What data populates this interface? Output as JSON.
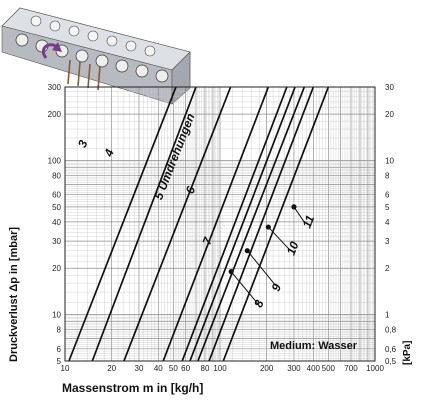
{
  "chart_data": {
    "type": "line",
    "x_scale": "log",
    "y_scale": "log",
    "xlim": [
      10,
      1000
    ],
    "ylim_mbar": [
      5,
      300
    ],
    "ylim_kpa": [
      0.5,
      30
    ],
    "grid": true,
    "xlabel": "Massenstrom m in [kg/h]",
    "ylabel_left": "Druckverlust  Δp in [mbar]",
    "ylabel_right": "[kPa]",
    "annotation": "Medium: Wasser",
    "x_ticks": [
      {
        "v": 10,
        "t": "10"
      },
      {
        "v": 20,
        "t": "20"
      },
      {
        "v": 30,
        "t": "30"
      },
      {
        "v": 40,
        "t": "40"
      },
      {
        "v": 50,
        "t": "50"
      },
      {
        "v": 60,
        "t": "60"
      },
      {
        "v": 80,
        "t": "80"
      },
      {
        "v": 100,
        "t": "100"
      },
      {
        "v": 200,
        "t": "200"
      },
      {
        "v": 300,
        "t": "300"
      },
      {
        "v": 400,
        "t": "400"
      },
      {
        "v": 500,
        "t": "500"
      },
      {
        "v": 700,
        "t": "700"
      },
      {
        "v": 1000,
        "t": "1000"
      }
    ],
    "y_ticks_left": [
      {
        "v": 5,
        "t": "5"
      },
      {
        "v": 6,
        "t": "6"
      },
      {
        "v": 8,
        "t": "8"
      },
      {
        "v": 10,
        "t": "10"
      },
      {
        "v": 20,
        "t": "20"
      },
      {
        "v": 30,
        "t": "30"
      },
      {
        "v": 40,
        "t": "40"
      },
      {
        "v": 50,
        "t": "50"
      },
      {
        "v": 60,
        "t": "60"
      },
      {
        "v": 80,
        "t": "80"
      },
      {
        "v": 100,
        "t": "100"
      },
      {
        "v": 200,
        "t": "200"
      },
      {
        "v": 300,
        "t": "300"
      }
    ],
    "y_ticks_right": [
      {
        "v": 0.5,
        "t": "0,5"
      },
      {
        "v": 0.6,
        "t": "0,6"
      },
      {
        "v": 0.8,
        "t": "0,8"
      },
      {
        "v": 1,
        "t": "1"
      },
      {
        "v": 2,
        "t": "2"
      },
      {
        "v": 3,
        "t": "3"
      },
      {
        "v": 4,
        "t": "4"
      },
      {
        "v": 5,
        "t": "5"
      },
      {
        "v": 6,
        "t": "6"
      },
      {
        "v": 8,
        "t": "8"
      },
      {
        "v": 10,
        "t": "10"
      },
      {
        "v": 20,
        "t": "20"
      },
      {
        "v": 30,
        "t": "30"
      }
    ],
    "series": [
      {
        "name": "3",
        "points": [
          [
            10.6,
            5
          ],
          [
            52,
            300
          ]
        ]
      },
      {
        "name": "4",
        "points": [
          [
            15,
            5
          ],
          [
            70,
            300
          ]
        ]
      },
      {
        "name": "5 Umdrehungen",
        "points": [
          [
            24,
            5
          ],
          [
            117,
            300
          ]
        ]
      },
      {
        "name": "6",
        "points": [
          [
            43,
            5
          ],
          [
            205,
            300
          ]
        ]
      },
      {
        "name": "7",
        "points": [
          [
            57,
            5
          ],
          [
            270,
            300
          ]
        ]
      },
      {
        "name": "8",
        "points": [
          [
            64,
            5
          ],
          [
            305,
            300
          ]
        ]
      },
      {
        "name": "9",
        "points": [
          [
            72,
            5
          ],
          [
            350,
            300
          ]
        ]
      },
      {
        "name": "10",
        "points": [
          [
            85,
            5
          ],
          [
            400,
            300
          ]
        ]
      },
      {
        "name": "11",
        "points": [
          [
            105,
            5
          ],
          [
            500,
            300
          ]
        ]
      }
    ],
    "series_labels": [
      {
        "t": "3",
        "x": 13.5,
        "y": 120
      },
      {
        "t": "4",
        "x": 20,
        "y": 105
      },
      {
        "t": "5 Umdrehungen",
        "x": 42,
        "y": 55
      },
      {
        "t": "6",
        "x": 67,
        "y": 60
      },
      {
        "t": "7",
        "x": 86,
        "y": 28
      },
      {
        "t": "8",
        "x": 185,
        "y": 11
      },
      {
        "t": "9",
        "x": 240,
        "y": 14
      },
      {
        "t": "10",
        "x": 300,
        "y": 24
      },
      {
        "t": "11",
        "x": 380,
        "y": 36
      }
    ],
    "label_pointers": [
      {
        "from": [
          118,
          19
        ],
        "to": [
          175,
          11.8
        ]
      },
      {
        "from": [
          150,
          26
        ],
        "to": [
          228,
          15.5
        ]
      },
      {
        "from": [
          205,
          37
        ],
        "to": [
          285,
          26
        ]
      },
      {
        "from": [
          300,
          50
        ],
        "to": [
          355,
          39
        ]
      }
    ]
  }
}
